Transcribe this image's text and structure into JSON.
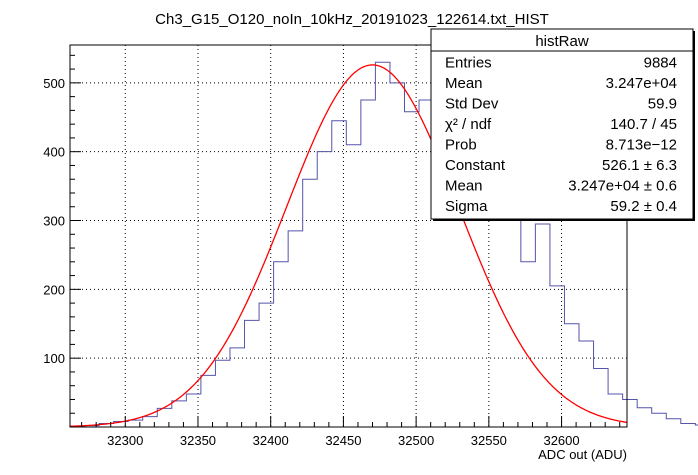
{
  "chart_data": {
    "type": "bar",
    "title": "Ch3_G15_O120_noIn_10kHz_20191023_122614.txt_HIST",
    "xlabel": "ADC out (ADU)",
    "ylabel": "",
    "xlim": [
      32262,
      32645
    ],
    "ylim": [
      0,
      555
    ],
    "grid": true,
    "x_ticks": [
      "32300",
      "32350",
      "32400",
      "32450",
      "32500",
      "32550",
      "32600"
    ],
    "x_tick_values": [
      32300,
      32350,
      32400,
      32450,
      32500,
      32550,
      32600
    ],
    "y_ticks": [
      "100",
      "200",
      "300",
      "400",
      "500"
    ],
    "y_tick_values": [
      100,
      200,
      300,
      400,
      500
    ],
    "series": [
      {
        "bin_width": 10,
        "bin_edges_start": 32262,
        "values": [
          1,
          2,
          5,
          8,
          10,
          15,
          27,
          38,
          48,
          75,
          97,
          115,
          155,
          180,
          240,
          285,
          360,
          400,
          445,
          410,
          475,
          530,
          500,
          458,
          475,
          472,
          440,
          400,
          395,
          365,
          310,
          240,
          295,
          205,
          150,
          125,
          85,
          48,
          40,
          28,
          20,
          12,
          5,
          3,
          1
        ]
      }
    ],
    "fit": {
      "function": "gaus",
      "constant": 526.1,
      "mean": 32470,
      "sigma": 59.2,
      "color": "#ff0000"
    },
    "histogram_color": "#5555aa",
    "stats_box": {
      "name": "histRaw",
      "placement": "top-right",
      "rows": [
        {
          "label": "Entries",
          "value": "9884"
        },
        {
          "label": "Mean",
          "value": "3.247e+04"
        },
        {
          "label": "Std Dev",
          "value": "59.9"
        },
        {
          "label": "χ² / ndf",
          "value": "140.7 / 45"
        },
        {
          "label": "Prob",
          "value": "8.713e−12"
        },
        {
          "label": "Constant",
          "value": "526.1 ± 6.3"
        },
        {
          "label": "Mean",
          "value": "3.247e+04 ± 0.6"
        },
        {
          "label": "Sigma",
          "value": "59.2 ± 0.4"
        }
      ]
    }
  }
}
